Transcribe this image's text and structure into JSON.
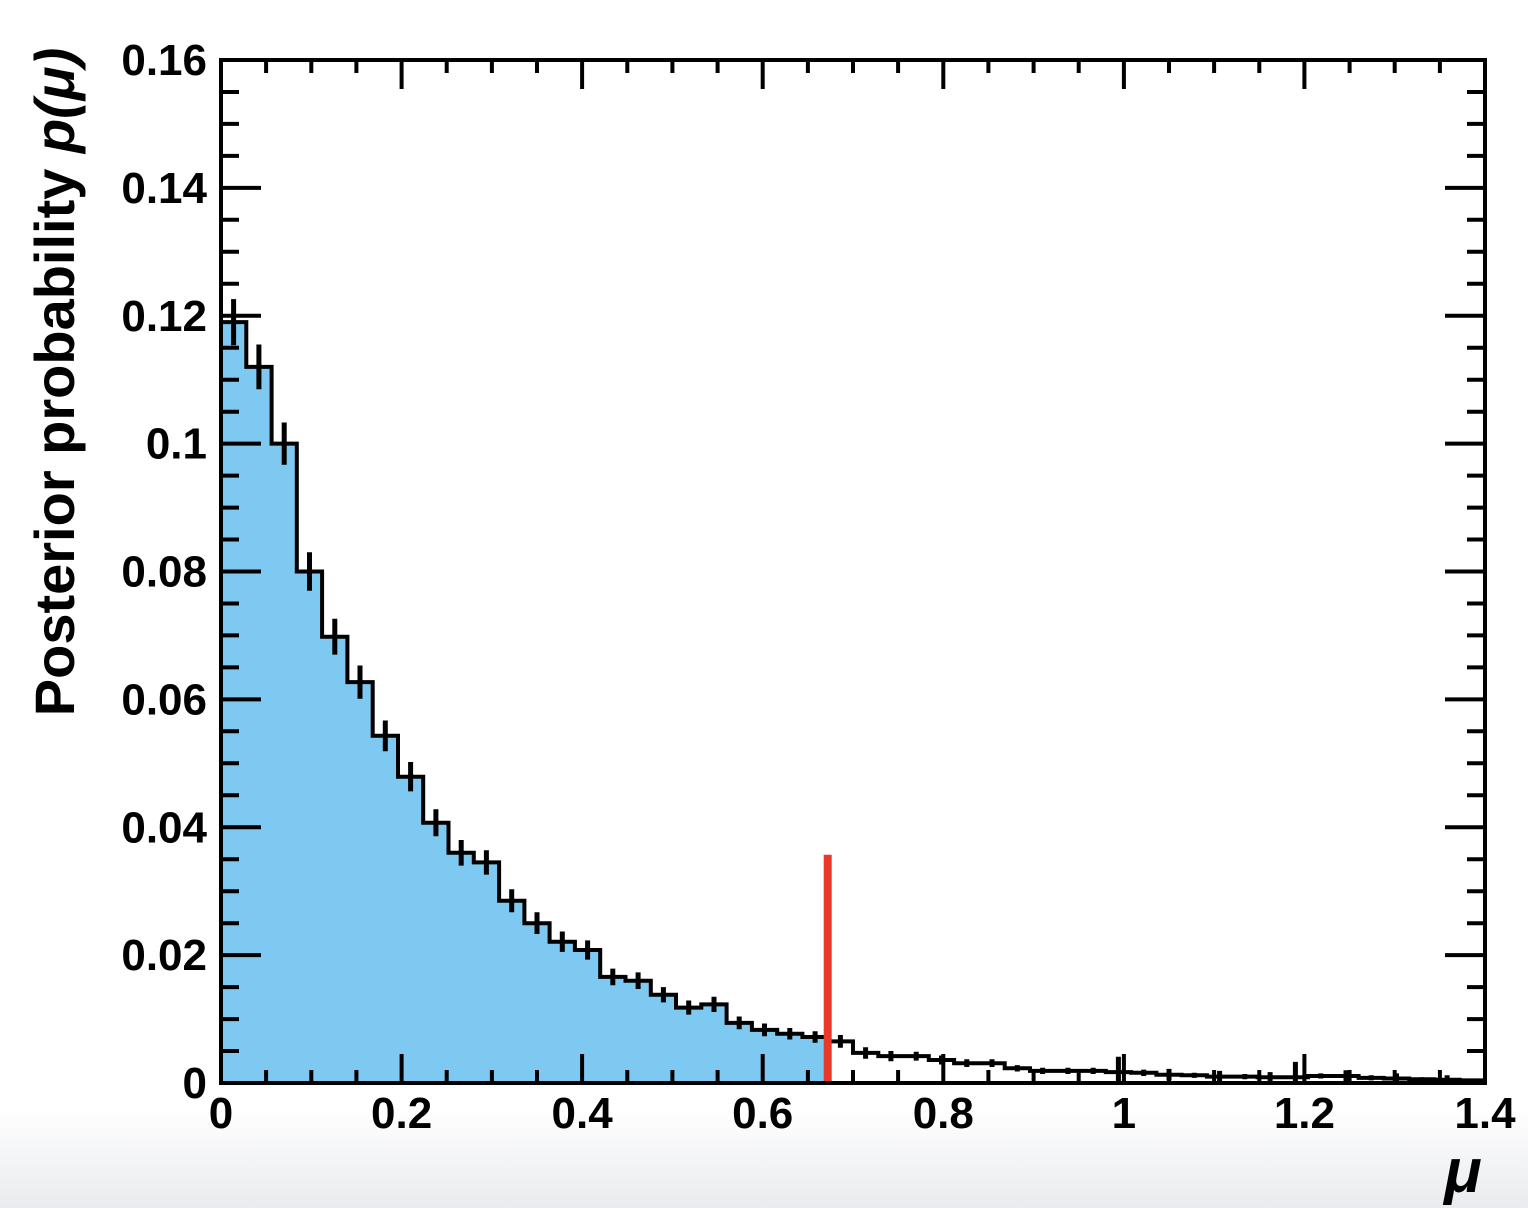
{
  "figure": {
    "background": "#ffffff",
    "bottom_fade_color": "#e9ebee",
    "frame_color": "#000000"
  },
  "chart_data": {
    "type": "bar",
    "subtype": "step-histogram-with-errors",
    "title": "",
    "xlabel": "μ",
    "ylabel": "Posterior probability p(μ)",
    "ylabel_regular": "Posterior probability ",
    "ylabel_italic": "p(μ)",
    "xlim": [
      0,
      1.4
    ],
    "ylim": [
      0,
      0.16
    ],
    "grid": false,
    "x_major_ticks": [
      0,
      0.2,
      0.4,
      0.6,
      0.8,
      1,
      1.2,
      1.4
    ],
    "x_major_labels": [
      "0",
      "0.2",
      "0.4",
      "0.6",
      "0.8",
      "1",
      "1.2",
      "1.4"
    ],
    "x_minor_step": 0.05,
    "y_major_ticks": [
      0,
      0.02,
      0.04,
      0.06,
      0.08,
      0.1,
      0.12,
      0.14,
      0.16
    ],
    "y_major_labels": [
      "0",
      "0.02",
      "0.04",
      "0.06",
      "0.08",
      "0.1",
      "0.12",
      "0.14",
      "0.16"
    ],
    "y_minor_step": 0.005,
    "n_bins": 50,
    "bin_start": 0,
    "bin_width": 0.028,
    "bin_values": [
      0.119,
      0.112,
      0.1,
      0.08,
      0.0698,
      0.0627,
      0.0543,
      0.0479,
      0.0407,
      0.036,
      0.0345,
      0.0285,
      0.025,
      0.0221,
      0.0208,
      0.0166,
      0.016,
      0.0138,
      0.0118,
      0.0123,
      0.0094,
      0.0083,
      0.0077,
      0.0072,
      0.0065,
      0.0047,
      0.0042,
      0.0042,
      0.0036,
      0.0031,
      0.0031,
      0.0023,
      0.0019,
      0.0019,
      0.0019,
      0.0017,
      0.0016,
      0.0013,
      0.0012,
      0.001,
      0.001,
      0.0009,
      0.0009,
      0.0011,
      0.0011,
      0.0008,
      0.0007,
      0.0006,
      0.0005,
      0.0004
    ],
    "bin_errors": [
      0.0036,
      0.0035,
      0.0033,
      0.003,
      0.0028,
      0.0026,
      0.0024,
      0.0023,
      0.0021,
      0.002,
      0.0019,
      0.0018,
      0.0017,
      0.0016,
      0.0015,
      0.0013,
      0.0013,
      0.0012,
      0.0011,
      0.0012,
      0.001,
      0.001,
      0.0009,
      0.0009,
      0.001,
      0.0009,
      0.0008,
      0.0007,
      0.0007,
      0.0006,
      0.0006,
      0.0005,
      0.0005,
      0.0005,
      0.0005,
      0.0024,
      0.0005,
      0.0009,
      0.0004,
      0.0009,
      0.0004,
      0.0008,
      0.0024,
      0.0004,
      0.0009,
      0.0004,
      0.0008,
      0.0003,
      0.0007,
      0.0003
    ],
    "filled_until": 0.672,
    "fill_color": "#7dc9f1",
    "line_color": "#000000",
    "upper_limit_marker": {
      "x": 0.672,
      "height": 0.0357,
      "color": "#e8392b"
    }
  }
}
